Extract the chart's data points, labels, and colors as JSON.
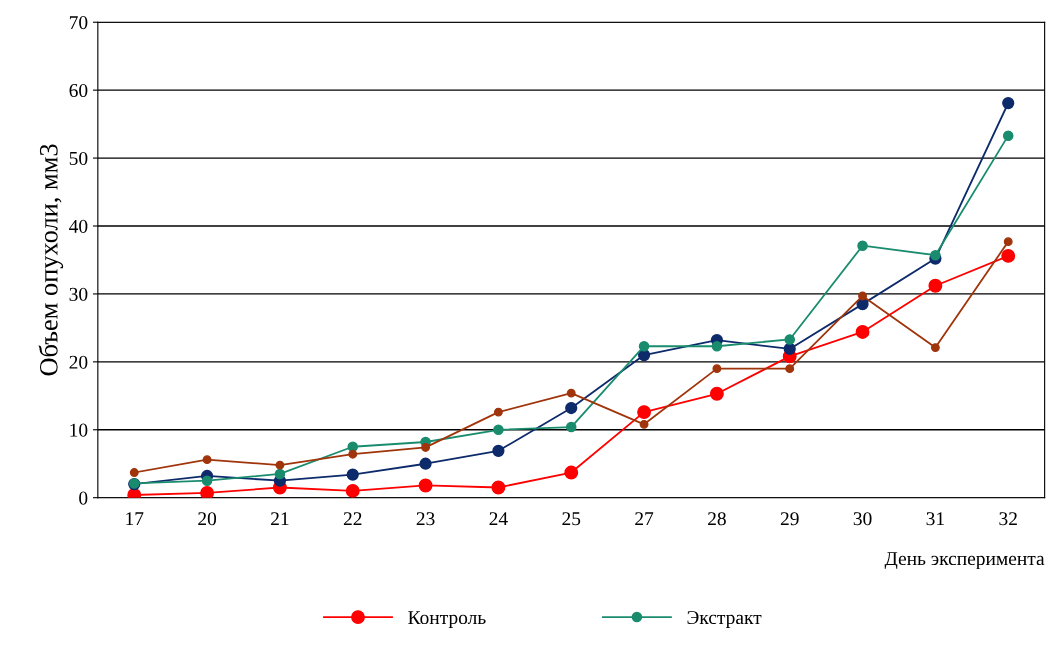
{
  "chart_data": {
    "type": "line",
    "ylabel": "Объем опухоли, мм3",
    "xlabel": "День эксперимента",
    "categories": [
      "17",
      "20",
      "21",
      "22",
      "23",
      "24",
      "25",
      "27",
      "28",
      "29",
      "30",
      "31",
      "32"
    ],
    "series": [
      {
        "name": "Контроль",
        "color": "#ff0000",
        "values": [
          0.4,
          0.7,
          1.5,
          1.0,
          1.8,
          1.5,
          3.7,
          12.6,
          15.3,
          20.8,
          24.4,
          31.2,
          35.6
        ]
      },
      {
        "color": "#0d2b6b",
        "values": [
          2.0,
          3.2,
          2.5,
          3.4,
          5.0,
          6.9,
          13.2,
          21.0,
          23.2,
          21.9,
          28.5,
          35.2,
          58.1
        ]
      },
      {
        "name": "Экстракт",
        "color": "#1a8c6e",
        "values": [
          2.1,
          2.5,
          3.5,
          7.5,
          8.2,
          10.0,
          10.4,
          22.3,
          22.3,
          23.3,
          37.1,
          35.7,
          53.3
        ]
      },
      {
        "color": "#a0340a",
        "values": [
          3.7,
          5.6,
          4.8,
          6.4,
          7.4,
          12.6,
          15.4,
          10.8,
          19.0,
          19.0,
          29.7,
          22.1,
          37.7
        ]
      }
    ],
    "ylim": [
      0,
      70
    ],
    "yticks": [
      0,
      10,
      20,
      30,
      40,
      50,
      60,
      70
    ],
    "grid": "y",
    "legend": "bottom",
    "marker": "circle",
    "line_style": "solid"
  }
}
